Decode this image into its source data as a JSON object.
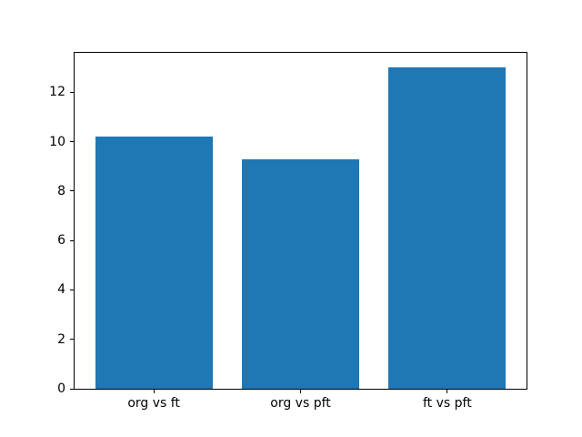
{
  "chart_data": {
    "type": "bar",
    "title": "",
    "xlabel": "",
    "ylabel": "",
    "categories": [
      "org vs ft",
      "org vs pft",
      "ft vs pft"
    ],
    "values": [
      10.2,
      9.3,
      13.0
    ],
    "bar_positions": [
      0,
      1,
      2
    ],
    "bar_width": 0.8,
    "xlim": [
      -0.54,
      2.54
    ],
    "ylim": [
      0,
      13.6
    ],
    "yticks": [
      0,
      2,
      4,
      6,
      8,
      10,
      12
    ],
    "grid": false,
    "legend_position": "none",
    "bar_color": "#1f77b4",
    "spine_color": "#000000",
    "axes_background": "#ffffff",
    "figure_background": "#ffffff"
  }
}
